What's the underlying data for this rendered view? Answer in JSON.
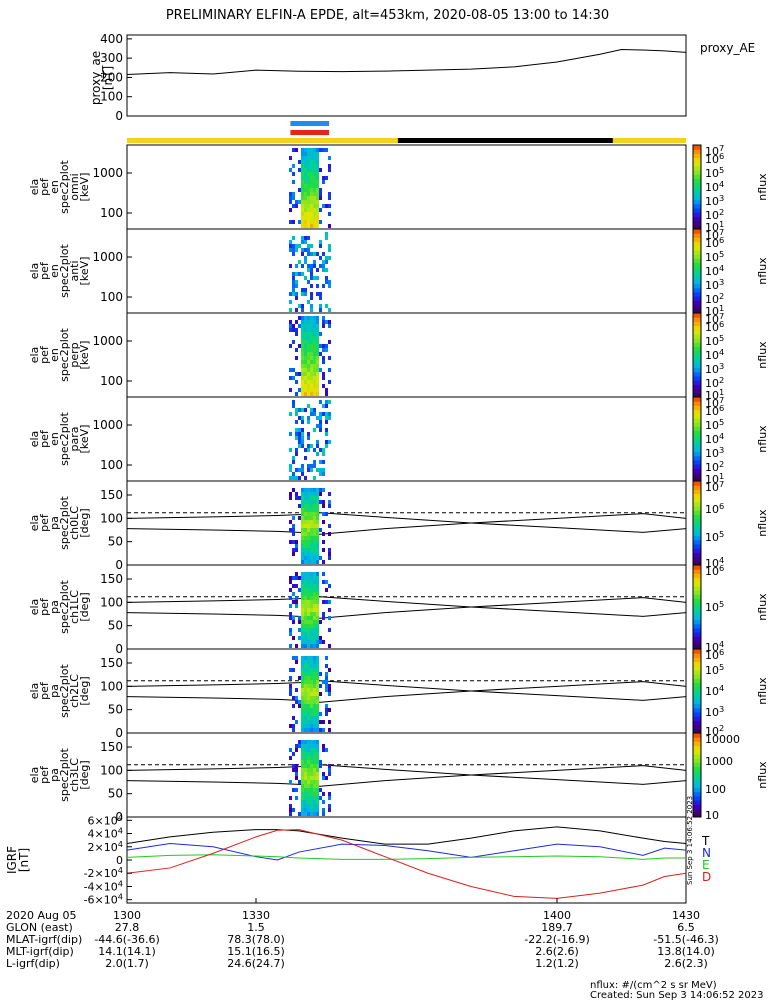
{
  "title": "PRELIMINARY ELFIN-A EPDE, alt=453km, 2020-08-05 13:00 to 14:30",
  "proxy_ae_legend": "proxy_AE",
  "colors": {
    "sunlight_bar": "#f5d21a",
    "eclipse_bar": "#000000",
    "science_zone_blue": "#1e8cf0",
    "science_zone_red": "#e8241a",
    "gsm_t": "#000000",
    "gsm_n": "#1a2bd8",
    "gsm_e": "#22c922",
    "gsm_d": "#d8201a"
  },
  "panels": [
    {
      "name": "proxy_ae",
      "ylabel": [
        "proxy_ae",
        "[nT]"
      ]
    },
    {
      "name": "en_omni",
      "ylabel": [
        "ela",
        "pef",
        "en",
        "spec2plot",
        "omni",
        "[keV]"
      ],
      "cbar_label": "nflux"
    },
    {
      "name": "en_anti",
      "ylabel": [
        "ela",
        "pef",
        "en",
        "spec2plot",
        "anti",
        "[keV]"
      ],
      "cbar_label": "nflux"
    },
    {
      "name": "en_perp",
      "ylabel": [
        "ela",
        "pef",
        "en",
        "spec2plot",
        "perp",
        "[keV]"
      ],
      "cbar_label": "nflux"
    },
    {
      "name": "en_para",
      "ylabel": [
        "ela",
        "pef",
        "en",
        "spec2plot",
        "para",
        "[keV]"
      ],
      "cbar_label": "nflux"
    },
    {
      "name": "pa_ch0",
      "ylabel": [
        "ela",
        "pef",
        "pa",
        "spec2plot",
        "ch0LC",
        "[deg]"
      ],
      "cbar_label": "nflux"
    },
    {
      "name": "pa_ch1",
      "ylabel": [
        "ela",
        "pef",
        "pa",
        "spec2plot",
        "ch1LC",
        "[deg]"
      ],
      "cbar_label": "nflux"
    },
    {
      "name": "pa_ch2",
      "ylabel": [
        "ela",
        "pef",
        "pa",
        "spec2plot",
        "ch2LC",
        "[deg]"
      ],
      "cbar_label": "nflux"
    },
    {
      "name": "pa_ch3",
      "ylabel": [
        "ela",
        "pef",
        "pa",
        "spec2plot",
        "ch3LC",
        "[deg]"
      ],
      "cbar_label": "nflux"
    },
    {
      "name": "igrf",
      "ylabel": [
        "IGRF",
        "[nT]"
      ]
    }
  ],
  "igrf_legend": [
    "T",
    "N",
    "E",
    "D"
  ],
  "side_stamp": "Sun Sep  3 14:06:52 2023",
  "footer": {
    "rows": [
      {
        "label": "2020 Aug 05",
        "values": [
          "1300",
          "1330",
          "1400",
          "1430"
        ]
      },
      {
        "label": "GLON (east)",
        "values": [
          "27.8",
          "1.5",
          "189.7",
          "6.5"
        ]
      },
      {
        "label": "MLAT-igrf(dip)",
        "values": [
          "-44.6(-36.6)",
          "78.3(78.0)",
          "-22.2(-16.9)",
          "-51.5(-46.3)"
        ]
      },
      {
        "label": "MLT-igrf(dip)",
        "values": [
          "14.1(14.1)",
          "15.1(16.5)",
          "2.6(2.6)",
          "13.8(14.0)"
        ]
      },
      {
        "label": "L-igrf(dip)",
        "values": [
          "2.0(1.7)",
          "24.6(24.7)",
          "1.2(1.2)",
          "2.6(2.3)"
        ]
      }
    ],
    "units": "nflux: #/(cm^2 s sr MeV)",
    "created": "Created: Sun Sep  3 14:06:52 2023"
  },
  "chart_data": [
    {
      "type": "line",
      "name": "proxy_ae",
      "x": [
        1300,
        1310,
        1320,
        1330,
        1340,
        1350,
        1360,
        1370,
        1380,
        1390,
        1400,
        1410,
        1415,
        1420,
        1425,
        1430
      ],
      "values": [
        215,
        225,
        218,
        238,
        232,
        230,
        233,
        238,
        243,
        255,
        280,
        320,
        345,
        342,
        338,
        330
      ],
      "yticks": [
        "0",
        "100",
        "200",
        "300",
        "400"
      ],
      "ylim": [
        0,
        420
      ],
      "xlim": [
        1300,
        1430
      ]
    },
    {
      "type": "heatmap",
      "name": "energy_spectrograms",
      "yscale": "log",
      "yticks": [
        "100",
        "1000"
      ],
      "cbar_ticks": [
        "10^1",
        "10^2",
        "10^3",
        "10^4",
        "10^5",
        "10^6",
        "10^7"
      ],
      "active_x": [
        1340,
        1344
      ]
    },
    {
      "type": "heatmap",
      "name": "pitch_angle_spectrograms",
      "yticks": [
        "0",
        "50",
        "100",
        "150"
      ],
      "ylim": [
        0,
        180
      ],
      "cbar_ticks_ch0": [
        "10^4",
        "10^5",
        "10^6",
        "10^7"
      ],
      "cbar_ticks_ch1": [
        "10^4",
        "10^5",
        "10^6"
      ],
      "cbar_ticks_ch2": [
        "10^2",
        "10^3",
        "10^4",
        "10^5",
        "10^6"
      ],
      "cbar_ticks_ch3": [
        "10",
        "100",
        "1000",
        "10000"
      ],
      "loss_cone_dashed_deg": 112,
      "solid_x": [
        1300,
        1320,
        1335,
        1340,
        1345,
        1360,
        1380,
        1400,
        1420,
        1430
      ],
      "solid_deg": [
        78,
        75,
        72,
        70,
        66,
        78,
        90,
        100,
        110,
        100
      ],
      "anti_solid_deg": [
        100,
        103,
        106,
        108,
        112,
        102,
        90,
        80,
        70,
        78
      ]
    },
    {
      "type": "line",
      "name": "igrf",
      "yticks": [
        "-6x10^4",
        "-4x10^4",
        "-2x10^4",
        "0",
        "2x10^4",
        "4x10^4",
        "6x10^4"
      ],
      "ylim": [
        -65000,
        65000
      ],
      "x": [
        1300,
        1310,
        1320,
        1330,
        1335,
        1340,
        1350,
        1360,
        1370,
        1380,
        1390,
        1400,
        1410,
        1420,
        1425,
        1430
      ],
      "series": [
        {
          "name": "T",
          "values": [
            25000,
            35000,
            42000,
            46000,
            46000,
            44000,
            33000,
            24000,
            24000,
            33000,
            44000,
            50000,
            44000,
            33000,
            28000,
            25000
          ]
        },
        {
          "name": "N",
          "values": [
            15000,
            25000,
            20000,
            5000,
            0,
            12000,
            24000,
            22000,
            14000,
            4000,
            14000,
            24000,
            20000,
            7000,
            18000,
            15000
          ]
        },
        {
          "name": "E",
          "values": [
            4000,
            7000,
            8000,
            6000,
            5000,
            3000,
            1000,
            1000,
            2000,
            4000,
            5000,
            6000,
            5000,
            1000,
            3000,
            3000
          ]
        },
        {
          "name": "D",
          "values": [
            -20000,
            -12000,
            10000,
            35000,
            45000,
            46000,
            30000,
            5000,
            -20000,
            -40000,
            -55000,
            -58000,
            -50000,
            -38000,
            -25000,
            -20000
          ]
        }
      ]
    }
  ]
}
